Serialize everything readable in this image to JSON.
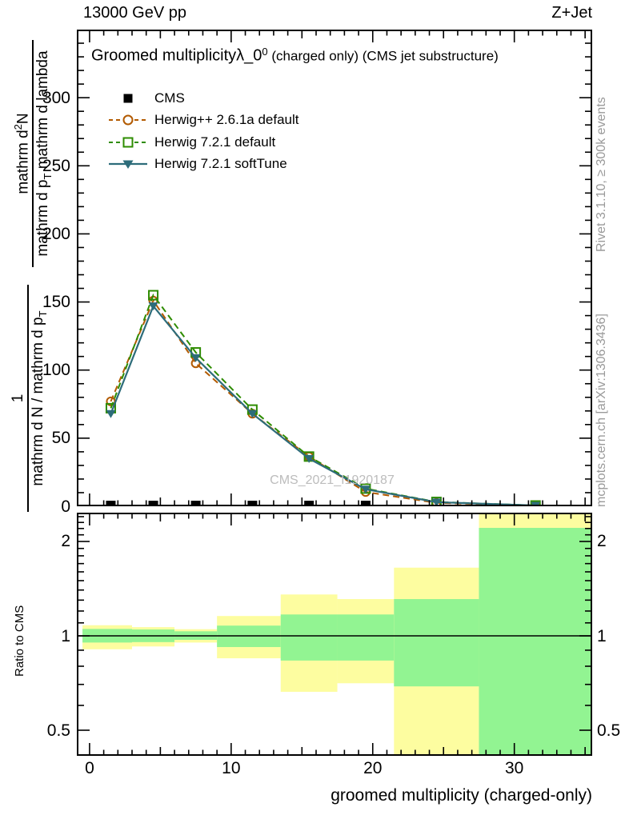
{
  "header": {
    "left": "13000 GeV pp",
    "right": "Z+Jet"
  },
  "title": {
    "main": "Groomed multiplicity",
    "lambda": "λ_0",
    "sup": "0",
    "suffix": " (charged only) (CMS jet substructure)"
  },
  "watermark": "CMS_2021_I1920187",
  "side_notes": {
    "rivet": "Rivet 3.1.10, ≥ 300k events",
    "mcplots": "mcplots.cern.ch [arXiv:1306.3436]"
  },
  "y_axis_label": {
    "frac1": {
      "num_pre": "mathrm d",
      "num_sup": "2",
      "num_post": "N",
      "den_pre": "mathrm d p",
      "den_sub": "T",
      "den_post": " mathrm d lambda"
    },
    "frac2": {
      "num": "1",
      "den_pre": "mathrm d N / mathrm d p",
      "den_sub": "T",
      "den_post": ""
    }
  },
  "ratio_axis_label": "Ratio to CMS",
  "xlabel": "groomed multiplicity (charged-only)",
  "colors": {
    "cms": "#000000",
    "herwigpp": "#b25a00",
    "herwig7_default": "#2e8c00",
    "herwig7_softtune": "#2d6c7a",
    "band_yellow": "#fdfda0",
    "band_green": "#92f492",
    "note_gray": "#9a9a9a",
    "watermark_gray": "#bcbcbc"
  },
  "chart_data": {
    "type": "line",
    "title": "Groomed multiplicity λ_0^0 (charged only) (CMS jet substructure)",
    "xlabel": "groomed multiplicity (charged-only)",
    "ylabel": "1 / (mathrm d N / mathrm d p_T) · mathrm d²N / (mathrm d p_T mathrm d lambda)",
    "xlim": [
      -0.9,
      35.5
    ],
    "ylim": [
      0,
      350
    ],
    "x_ticks": [
      0,
      10,
      20,
      30
    ],
    "y_ticks": [
      0,
      50,
      100,
      150,
      200,
      250,
      300
    ],
    "y_minor_step": 10,
    "x_minor_step": 1,
    "bin_edges": [
      -0.5,
      3,
      6,
      9,
      13.5,
      17.5,
      21.5,
      27.5,
      35.5
    ],
    "x": [
      1.5,
      4.5,
      7.5,
      11.5,
      15.5,
      19.5,
      24.5,
      31.5
    ],
    "series": [
      {
        "name": "CMS",
        "color": "#000000",
        "line": "none",
        "marker": "square-filled",
        "values": [
          2,
          2,
          2,
          2,
          2,
          2,
          null,
          null
        ]
      },
      {
        "name": "Herwig++ 2.6.1a default",
        "color": "#b25a00",
        "line": "dashed",
        "marker": "circle-open",
        "values": [
          77,
          151,
          105,
          68,
          36.5,
          10.5,
          2.5,
          0.5
        ]
      },
      {
        "name": "Herwig 7.2.1 default",
        "color": "#2e8c00",
        "line": "dashed",
        "marker": "square-open",
        "values": [
          72,
          155,
          113,
          71,
          36.5,
          13,
          3.2,
          0.6
        ]
      },
      {
        "name": "Herwig 7.2.1 softTune",
        "color": "#2d6c7a",
        "line": "solid",
        "marker": "triangle-down-filled",
        "values": [
          68,
          147,
          109,
          68,
          35,
          12.5,
          3.0,
          0.6
        ]
      }
    ],
    "ratio_panel": {
      "ylabel": "Ratio to CMS",
      "scale": "log",
      "ylim": [
        0.414,
        2.47
      ],
      "y_ticks": [
        2,
        1,
        0.5
      ],
      "y_tick_labels": [
        "2",
        "1",
        "0.5"
      ],
      "ref_line": 1,
      "bands": [
        {
          "x": [
            -0.5,
            3
          ],
          "yellow": [
            0.906,
            1.081
          ],
          "green": [
            0.952,
            1.052
          ]
        },
        {
          "x": [
            3,
            6
          ],
          "yellow": [
            0.925,
            1.066
          ],
          "green": [
            0.955,
            1.048
          ]
        },
        {
          "x": [
            6,
            9
          ],
          "yellow": [
            0.952,
            1.05
          ],
          "green": [
            0.971,
            1.034
          ]
        },
        {
          "x": [
            9,
            13.5
          ],
          "yellow": [
            0.848,
            1.157
          ],
          "green": [
            0.921,
            1.078
          ]
        },
        {
          "x": [
            13.5,
            17.5
          ],
          "yellow": [
            0.663,
            1.355
          ],
          "green": [
            0.834,
            1.17
          ]
        },
        {
          "x": [
            17.5,
            21.5
          ],
          "yellow": [
            0.706,
            1.31
          ],
          "green": [
            0.834,
            1.17
          ]
        },
        {
          "x": [
            21.5,
            27.5
          ],
          "yellow": [
            0.4,
            1.65
          ],
          "green": [
            0.69,
            1.31
          ]
        },
        {
          "x": [
            27.5,
            35.5
          ],
          "yellow": [
            0.4,
            2.47
          ],
          "green": [
            0.4,
            2.21
          ]
        }
      ]
    }
  }
}
